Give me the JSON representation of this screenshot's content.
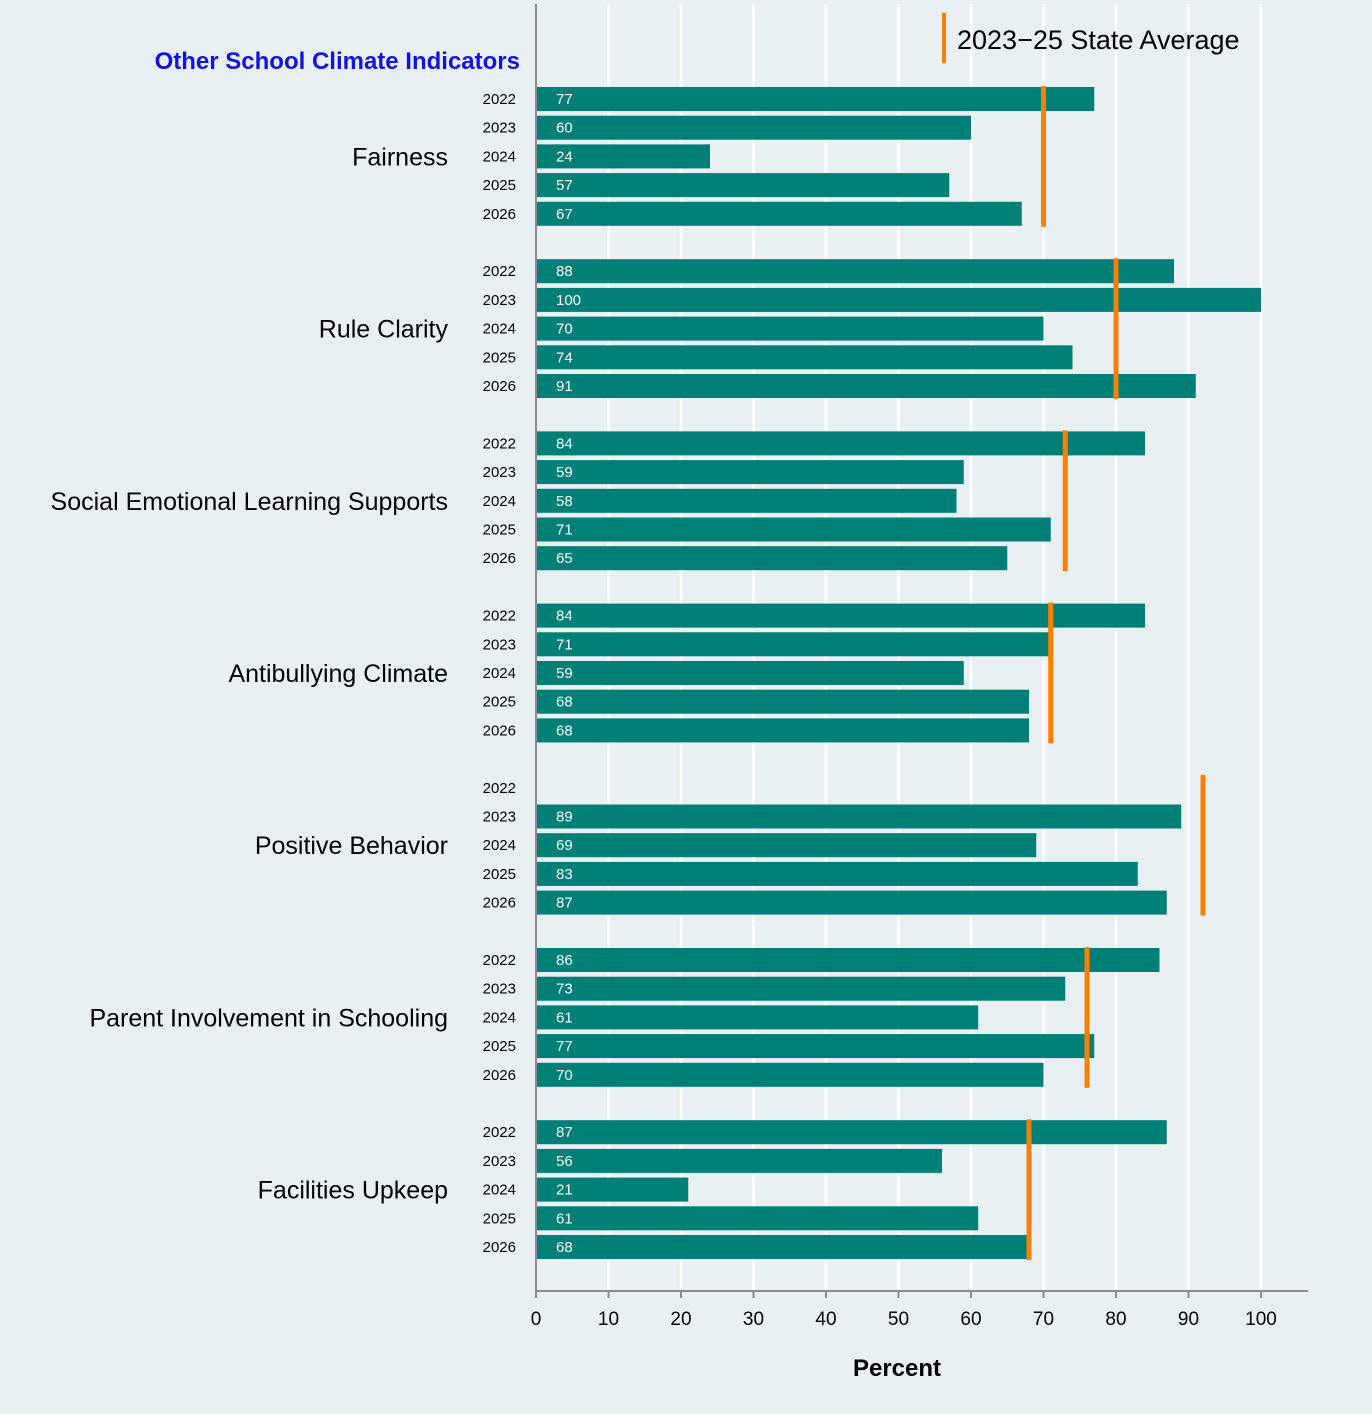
{
  "chart_data": {
    "type": "bar",
    "orientation": "horizontal",
    "title": "Other School Climate Indicators",
    "xlabel": "Percent",
    "xlim": [
      0,
      100
    ],
    "xticks": [
      0,
      10,
      20,
      30,
      40,
      50,
      60,
      70,
      80,
      90,
      100
    ],
    "grid": true,
    "years": [
      "2022",
      "2023",
      "2024",
      "2025",
      "2026"
    ],
    "legend": {
      "label": "2023−25 State Average",
      "placement": "top-right"
    },
    "colors": {
      "bar": "#007f77",
      "state_average": "#ff8000",
      "background": "#e9f0f3",
      "grid": "#ffffff",
      "title": "#1212e6"
    },
    "groups": [
      {
        "name": "Fairness",
        "values": [
          77,
          60,
          24,
          57,
          67
        ],
        "state_average": 70
      },
      {
        "name": "Rule Clarity",
        "values": [
          88,
          100,
          70,
          74,
          91
        ],
        "state_average": 80
      },
      {
        "name": "Social Emotional Learning Supports",
        "values": [
          84,
          59,
          58,
          71,
          65
        ],
        "state_average": 73
      },
      {
        "name": "Antibullying Climate",
        "values": [
          84,
          71,
          59,
          68,
          68
        ],
        "state_average": 71
      },
      {
        "name": "Positive Behavior",
        "values": [
          null,
          89,
          69,
          83,
          87
        ],
        "state_average": 92
      },
      {
        "name": "Parent Involvement in Schooling",
        "values": [
          86,
          73,
          61,
          77,
          70
        ],
        "state_average": 76
      },
      {
        "name": "Facilities Upkeep",
        "values": [
          87,
          56,
          21,
          61,
          68
        ],
        "state_average": 68
      }
    ]
  }
}
